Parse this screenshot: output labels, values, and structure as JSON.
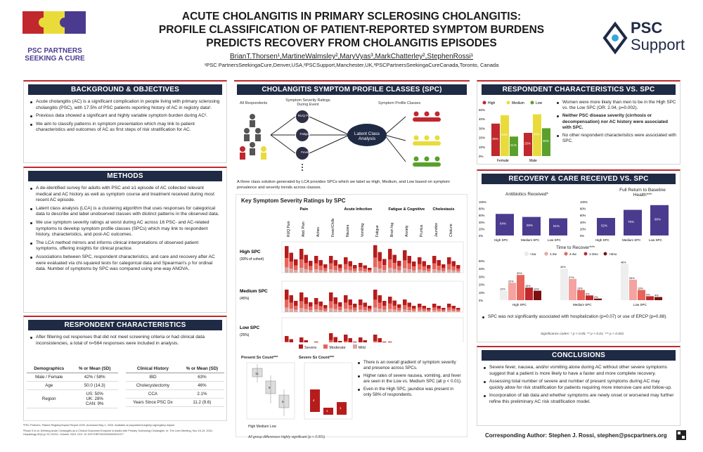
{
  "header": {
    "title_l1": "ACUTE CHOLANGITIS IN PRIMARY SCLEROSING CHOLANGITIS:",
    "title_l2": "PROFILE CLASSIFICATION OF PATIENT-REPORTED SYMPTOM BURDENS",
    "title_l3": "PREDICTS RECOVERY FROM CHOLANGITIS EPISODES",
    "authors": "BrianT.Thorsen¹,MartineWalmsley²,MaryVyas³,MarkChatterley²,StephenRossi¹",
    "affiliations": "¹PSC PartnersSeekingaCure,Denver,USA,²PSCSupport,Manchester,UK,³PSCPartnersSeekingaCureCanada,Toronto, Canada",
    "logo_left_l1": "PSC PARTNERS",
    "logo_left_l2": "SEEKING A CURE",
    "logo_right_l1": "PSC",
    "logo_right_l2": "Support"
  },
  "background": {
    "heading": "BACKGROUND & OBJECTIVES",
    "b1": "Acute cholangitis (AC) is a significant complication in people living with primary sclerosing cholangitis (PSC), with 17.5% of PSC patients reporting history of AC in registry data¹.",
    "b2": "Previous data showed a significant and highly variable symptom burden during AC².",
    "b3": "We aim to classify patterns in symptom presentation which may link to patient characteristics and outcomes of AC as first steps of risk stratification for AC."
  },
  "methods": {
    "heading": "METHODS",
    "b1": "A de-identified survey for adults with PSC and ≥1 episode of AC collected relevant medical and AC history as well as symptom course and treatment received during most recent AC episode.",
    "b2": "Latent class analysis (LCA) is a clustering algorithm that uses responses for categorical data to describe and label unobserved classes with distinct patterns in the observed data.",
    "b3": "We use symptom severity ratings at worst during AC across 16 PSC- and AC-related symptoms to develop symptom profile classes (SPCs) which may link to respondent history, characteristics, and post-AC outcomes.",
    "b4": "The LCA method mirrors and informs clinical interpretations of observed patient symptoms, offering insights for clinical practice.",
    "b5": "Associations between SPC, respondent characteristics, and care and recovery after AC were evaluated via chi-squared tests for categorical data and Spearman's ρ for ordinal data. Number of symptoms by SPC was compared using one-way ANOVA."
  },
  "resp": {
    "heading": "RESPONDENT CHARACTERISTICS",
    "b1": "After filtering out responses that did not meet screening criteria or had clinical data inconsistencies, a total of n=564 responses were included in analysis.",
    "t1h": [
      "Demographics",
      "% or Mean (SD)"
    ],
    "t1": [
      [
        "Male / Female",
        "42% / 58%"
      ],
      [
        "Age",
        "50.0 (14.3)"
      ],
      [
        "Region",
        "US: 50%\nUK: 28%\nCAN: 9%"
      ]
    ],
    "t2h": [
      "Clinical History",
      "% or Mean (SD)"
    ],
    "t2": [
      [
        "IBD",
        "63%"
      ],
      [
        "Cholecystectomy",
        "46%"
      ],
      [
        "CCA",
        "2.1%"
      ],
      [
        "Years Since PSC Dx",
        "11.2 (9.6)"
      ]
    ],
    "ref1": "¹PSC Partners. Patient Registry/Impact Report 2025. Accessed May 1, 2025. Available at pscpartnersregistry.org/registry-impact",
    "ref2": "²Rossi S et al. Defining Acute Cholangitis as a Clinical Outcomes Endpoint in Adults with Primary Sclerosing Cholangitis. In: The Liver Meeting, Nov 15-19, 2024. Hepatology 80(1):p S1-S2311, October 2024. DOI: 10.1097/HEP.0000000000001077"
  },
  "spc": {
    "heading": "CHOLANGITIS SYMPTOM PROFILE CLASSES (SPC)",
    "all": "All Respondents",
    "ratings": "Symptom Severity Ratings During Event",
    "s1": "RUQ Pain",
    "s2": "Fatigue",
    "s3": "Fever",
    "lca": "Latent Class Analysis",
    "profile": "Symptom Profile Classes",
    "caption": "A three class solution generated by LCA provides SPCs which we label as High, Medium, and Low based on symptom prevalence and severity trends across classes.",
    "chart_title": "Key Symptom Severity Ratings by SPC",
    "groups": [
      "Pain",
      "Acute Infection",
      "Fatigue & Cognitive",
      "Cholestasis"
    ],
    "symptoms": [
      "RUQ Pain",
      "Abd. Pain",
      "Aches",
      "Fever/Chills",
      "Nausea",
      "Vomiting",
      "Fatigue",
      "Brain fog",
      "Anxiety",
      "Pruritus",
      "Jaundice",
      "Cholurie"
    ],
    "rows": [
      {
        "name": "High SPC",
        "sub": "(30% of cohort)"
      },
      {
        "name": "Medium SPC",
        "sub": "(45%)"
      },
      {
        "name": "Low SPC",
        "sub": "(25%)"
      }
    ],
    "legend": [
      "Severe",
      "Moderate",
      "Mild"
    ],
    "box1_title": "Present Sx Count***",
    "box2_title": "Severe Sx Count***",
    "box_x": "High Medium Low",
    "box1_labels": [
      "11",
      "8",
      "5"
    ],
    "box2_labels": [
      "4",
      "1",
      "1"
    ],
    "note": "All group differences highly significant (p < 0.001)",
    "b1": "There is an overall gradient of symptom severity and presence across SPCs.",
    "b2": "Higher rates of severe nausea, vomiting, and fever are seen in the Low vs. Medium SPC (all p < 0.01).",
    "b3": "Even in the High SPC, jaundice was present in only 58% of respondents."
  },
  "rchar": {
    "heading": "RESPONDENT CHARACTERISTICS VS. SPC",
    "legend": [
      "High",
      "Medium",
      "Low"
    ],
    "cats": [
      "Female",
      "Male"
    ],
    "vals": [
      [
        "35%",
        "44%",
        "21%"
      ],
      [
        "25%",
        "45%",
        "30%"
      ]
    ],
    "yticks": [
      "50%",
      "40%",
      "30%",
      "20%",
      "10%",
      "0%"
    ],
    "b1": "Women were more likely than men to be in the High SPC vs. the Low SPC (OR: 2.04, p=0.002).",
    "b2": "Neither PSC disease severity (cirrhosis or decompensation) nor AC history were associated with SPC.",
    "b3": "No other respondent characteristics were associated with SPC."
  },
  "care": {
    "heading": "RECOVERY & CARE RECEIVED VS. SPC",
    "abx_title": "Antibiotics Received*",
    "abx_cats": [
      "High SPC",
      "Medium SPC",
      "Low SPC"
    ],
    "abx_vals": [
      "64%",
      "55%",
      "51%"
    ],
    "full_title": "Full Return to Baseline Health***",
    "full_vals": [
      "52%",
      "76%",
      "90%"
    ],
    "yt": [
      "100%",
      "80%",
      "60%",
      "40%",
      "20%",
      "0%"
    ],
    "ttr_title": "Time to Recover***",
    "ttr_legend": [
      "<1w",
      "1-2w",
      "2-4w",
      "1-3mo",
      ">3mo"
    ],
    "ttr_yt": [
      "50%",
      "40%",
      "30%",
      "20%",
      "10%",
      "0%"
    ],
    "ttr_vals": [
      [
        "12%",
        "22%",
        "32%",
        "16%",
        "12%"
      ],
      [
        "40%",
        "27%",
        "13%",
        "6%",
        "2%"
      ],
      [
        "46%",
        "26%",
        "13%",
        "5%",
        "4%"
      ]
    ],
    "b1": "SPC was not significantly associated with hospitalization (p=0.07) or use of ERCP (p=0.88).",
    "sig": "Significance codes: * p < 0.05; ** p < 0.01; *** p < 0.001"
  },
  "conc": {
    "heading": "CONCLUSIONS",
    "b1": "Severe fever, nausea, and/or vomiting alone during AC without other severe symptoms suggest that a patient is more likely to have a faster and more complete recovery.",
    "b2": "Assessing total number of severe and number of present symptoms during AC may quickly allow for risk stratification for patients requiring more intensive care and follow-up.",
    "b3": "Incorporation of lab data and whether symptoms are newly onset or worsened may further refine this preliminary AC risk stratification model."
  },
  "footer": {
    "corr": "Corresponding Author: Stephen J. Rossi, stephen@pscpartners.org"
  },
  "chart_data": [
    {
      "type": "bar",
      "title": "Respondent Characteristics vs. SPC",
      "categories": [
        "Female",
        "Male"
      ],
      "series": [
        {
          "name": "High",
          "values": [
            35,
            25
          ]
        },
        {
          "name": "Medium",
          "values": [
            44,
            45
          ]
        },
        {
          "name": "Low",
          "values": [
            21,
            30
          ]
        }
      ],
      "ylim": [
        0,
        50
      ]
    },
    {
      "type": "bar",
      "title": "Antibiotics Received*",
      "categories": [
        "High SPC",
        "Medium SPC",
        "Low SPC"
      ],
      "values": [
        64,
        55,
        51
      ],
      "ylim": [
        0,
        100
      ]
    },
    {
      "type": "bar",
      "title": "Full Return to Baseline Health***",
      "categories": [
        "High SPC",
        "Medium SPC",
        "Low SPC"
      ],
      "values": [
        52,
        76,
        90
      ],
      "ylim": [
        0,
        100
      ]
    },
    {
      "type": "bar",
      "title": "Time to Recover***",
      "categories": [
        "High SPC",
        "Medium SPC",
        "Low SPC"
      ],
      "series": [
        {
          "name": "<1w",
          "values": [
            12,
            40,
            46
          ]
        },
        {
          "name": "1-2w",
          "values": [
            22,
            27,
            26
          ]
        },
        {
          "name": "2-4w",
          "values": [
            32,
            13,
            13
          ]
        },
        {
          "name": "1-3mo",
          "values": [
            16,
            6,
            5
          ]
        },
        {
          "name": ">3mo",
          "values": [
            12,
            2,
            4
          ]
        }
      ],
      "ylim": [
        0,
        50
      ]
    }
  ]
}
